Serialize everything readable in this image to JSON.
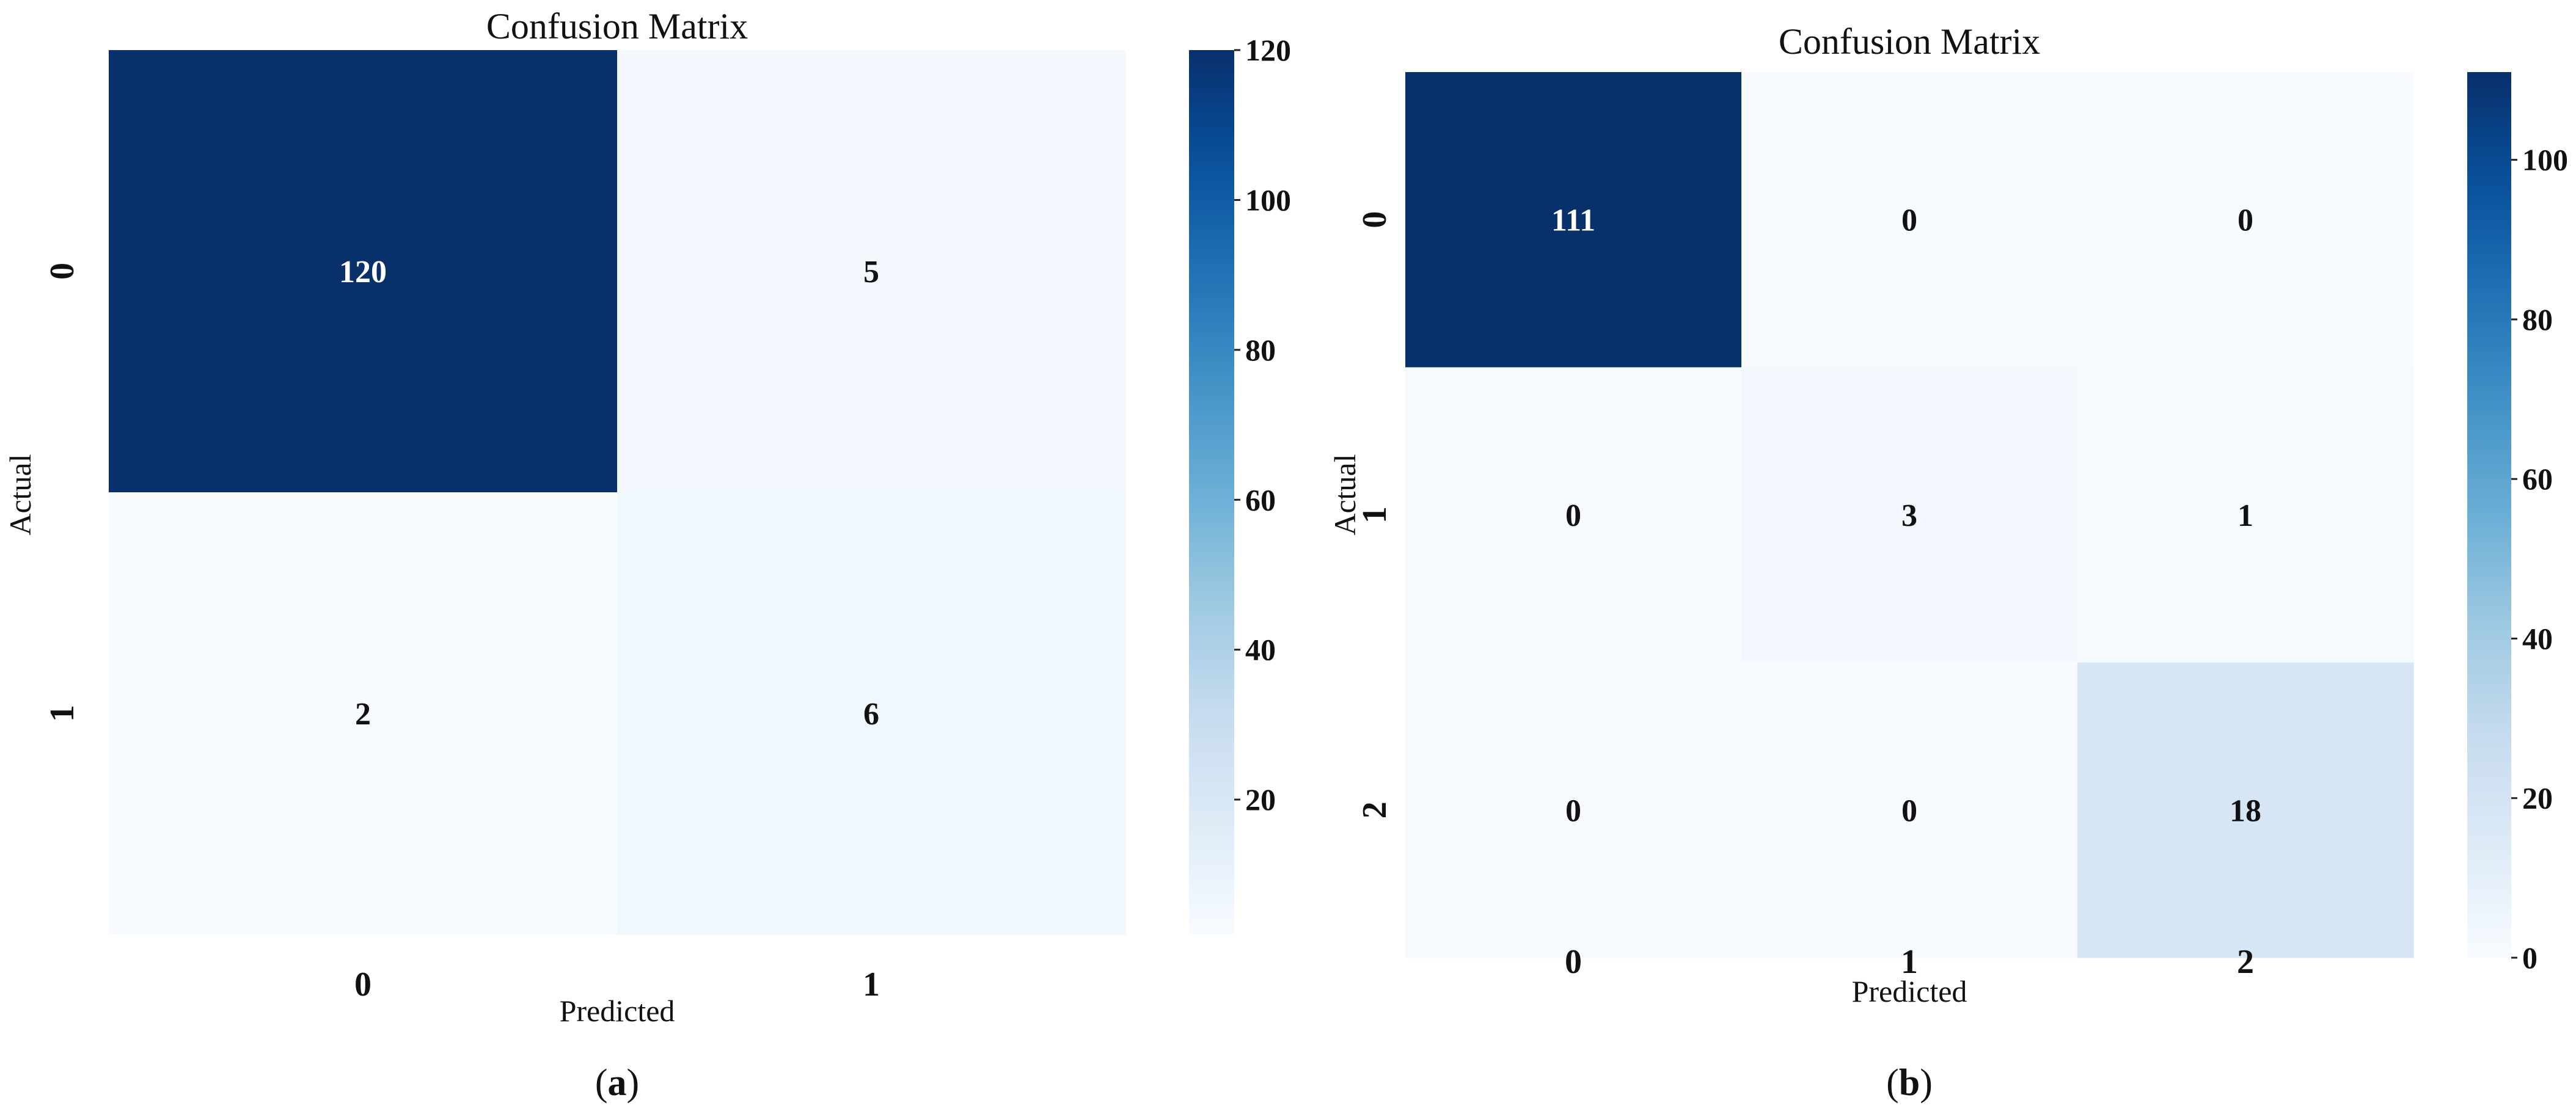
{
  "chart_data": [
    {
      "type": "heatmap",
      "title": "Confusion Matrix",
      "xlabel": "Predicted",
      "ylabel": "Actual",
      "x_categories": [
        "0",
        "1"
      ],
      "y_categories": [
        "0",
        "1"
      ],
      "values": [
        [
          120,
          5
        ],
        [
          2,
          6
        ]
      ],
      "colormap": "Blues",
      "colorbar": {
        "range": [
          2,
          120
        ],
        "ticks": [
          20,
          40,
          60,
          80,
          100,
          120
        ]
      },
      "caption": {
        "open": "(",
        "letter": "a",
        "close": ")"
      }
    },
    {
      "type": "heatmap",
      "title": "Confusion Matrix",
      "xlabel": "Predicted",
      "ylabel": "Actual",
      "x_categories": [
        "0",
        "1",
        "2"
      ],
      "y_categories": [
        "0",
        "1",
        "2"
      ],
      "values": [
        [
          111,
          0,
          0
        ],
        [
          0,
          3,
          1
        ],
        [
          0,
          0,
          18
        ]
      ],
      "colormap": "Blues",
      "colorbar": {
        "range": [
          0,
          111
        ],
        "ticks": [
          0,
          20,
          40,
          60,
          80,
          100
        ]
      },
      "caption": {
        "open": "(",
        "letter": "b",
        "close": ")"
      }
    }
  ],
  "colors": {
    "low": "#f7fbff",
    "high": "#08306b",
    "text_light": "#ffffff",
    "text_dark": "#111111"
  }
}
